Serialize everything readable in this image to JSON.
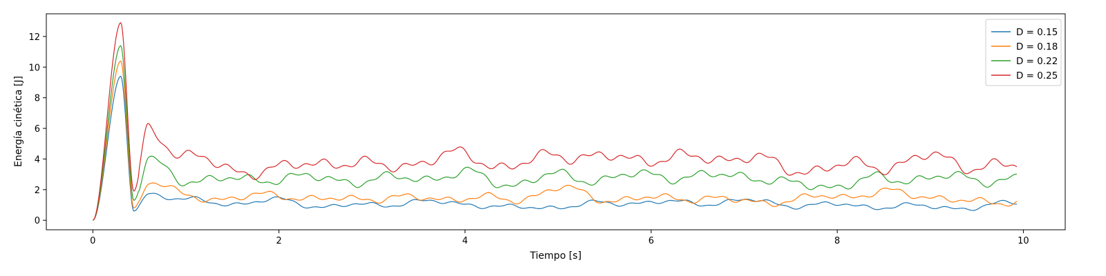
{
  "chart_data": {
    "type": "line",
    "xlabel": "Tiempo [s]",
    "ylabel": "Energía cinética [J]",
    "xlim": [
      -0.5,
      10.45
    ],
    "ylim": [
      -0.62,
      13.48
    ],
    "xticks": [
      0,
      2,
      4,
      6,
      8,
      10
    ],
    "yticks": [
      0,
      2,
      4,
      6,
      8,
      10,
      12
    ],
    "grid": false,
    "legend_position": "top-right",
    "x": [
      0,
      0.3,
      0.44,
      0.6,
      1,
      1.5,
      2,
      2.5,
      3,
      3.5,
      4,
      4.5,
      5,
      5.5,
      6,
      6.5,
      7,
      7.5,
      8,
      8.5,
      9,
      9.5,
      9.93
    ],
    "series": [
      {
        "name": "D = 0.15",
        "color": "#1f77b4",
        "values": [
          0,
          9.4,
          0.6,
          1.8,
          1.3,
          1.1,
          1.3,
          0.9,
          1.0,
          1.2,
          1.1,
          0.8,
          0.9,
          1.1,
          1.2,
          1.1,
          1.3,
          1.0,
          1.0,
          0.9,
          0.9,
          0.8,
          1.2
        ]
      },
      {
        "name": "D = 0.18",
        "color": "#ff7f0e",
        "values": [
          0,
          10.4,
          0.8,
          2.5,
          1.6,
          1.4,
          1.7,
          1.3,
          1.5,
          1.4,
          1.5,
          1.3,
          2.1,
          1.4,
          1.4,
          1.5,
          1.2,
          1.3,
          1.6,
          1.8,
          1.6,
          1.1,
          1.3
        ]
      },
      {
        "name": "D = 0.22",
        "color": "#2ca02c",
        "values": [
          0,
          11.4,
          1.3,
          3.8,
          2.7,
          2.6,
          2.8,
          2.7,
          2.6,
          2.8,
          3.0,
          2.4,
          2.9,
          2.7,
          3.0,
          2.8,
          3.0,
          2.3,
          2.3,
          2.7,
          2.8,
          2.7,
          2.7
        ]
      },
      {
        "name": "D = 0.25",
        "color": "#d62728",
        "values": [
          0,
          12.9,
          1.9,
          6.0,
          4.2,
          3.3,
          3.3,
          3.9,
          3.5,
          3.8,
          4.3,
          3.4,
          4.4,
          4.0,
          4.1,
          4.0,
          4.2,
          3.3,
          3.5,
          3.6,
          4.1,
          3.6,
          3.4
        ]
      }
    ]
  }
}
